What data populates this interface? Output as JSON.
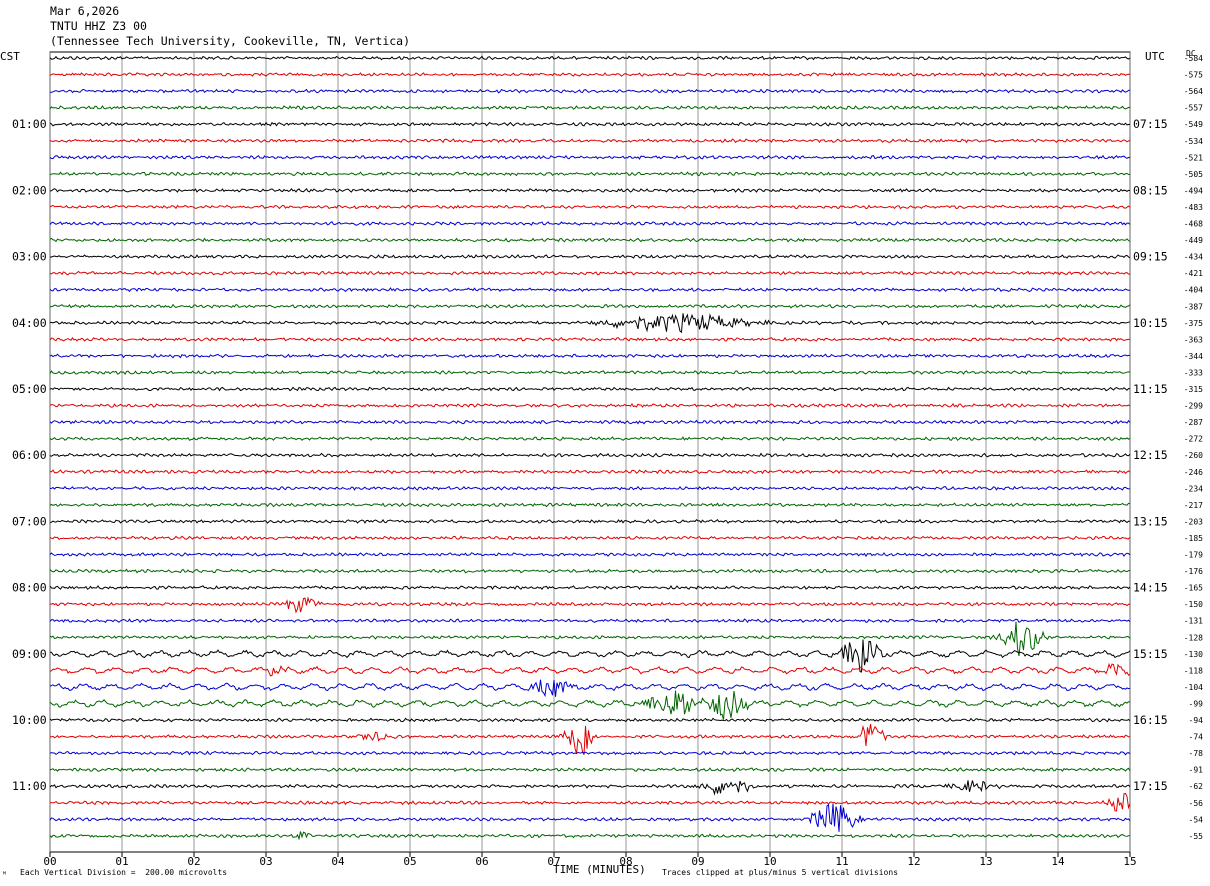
{
  "header": {
    "line1": "Mar 6,2026",
    "line2": "TNTU HHZ Z3 00",
    "line3": "(Tennessee Tech University, Cookeville, TN, Vertica)"
  },
  "left_tz": "CST",
  "right_tz": "UTC",
  "dc_label": "DC",
  "footer": {
    "scale": "Each Vertical Division =  200.00 microvolts",
    "xlabel": "TIME (MINUTES)",
    "clip_note": "Traces clipped at plus/minus 5 vertical divisions"
  },
  "chart_data": {
    "type": "line",
    "title": "TNTU HHZ Z3 00",
    "xlabel": "TIME (MINUTES)",
    "xlim": [
      0,
      15
    ],
    "x_ticks": [
      "00",
      "01",
      "02",
      "03",
      "04",
      "05",
      "06",
      "07",
      "08",
      "09",
      "10",
      "11",
      "12",
      "13",
      "14",
      "15"
    ],
    "trace_colors": [
      "#000000",
      "#e00000",
      "#0000d0",
      "#006400"
    ],
    "left_time_labels": [
      "01:00",
      "02:00",
      "03:00",
      "04:00",
      "05:00",
      "06:00",
      "07:00",
      "08:00",
      "09:00",
      "10:00",
      "11:00"
    ],
    "right_time_labels": [
      "07:15",
      "08:15",
      "09:15",
      "10:15",
      "11:15",
      "12:15",
      "13:15",
      "14:15",
      "15:15",
      "16:15",
      "17:15"
    ],
    "label_rows": [
      4,
      8,
      12,
      16,
      20,
      24,
      28,
      32,
      36,
      40,
      44
    ],
    "dc_offsets": [
      "-584",
      "-575",
      "-564",
      "-557",
      "-549",
      "-534",
      "-521",
      "-505",
      "-494",
      "-483",
      "-468",
      "-449",
      "-434",
      "-421",
      "-404",
      "-387",
      "-375",
      "-363",
      "-344",
      "-333",
      "-315",
      "-299",
      "-287",
      "-272",
      "-260",
      "-246",
      "-234",
      "-217",
      "-203",
      "-185",
      "-179",
      "-176",
      "-165",
      "-150",
      "-131",
      "-128",
      "-130",
      "-118",
      "-104",
      "-99",
      "-94",
      "-74",
      "-78",
      "-91",
      "-62",
      "-56",
      "-54",
      "-55"
    ],
    "events": [
      {
        "trace": 16,
        "minute": 8.7,
        "amplitude": 0.9,
        "duration": 2.5
      },
      {
        "trace": 33,
        "minute": 3.5,
        "amplitude": 0.8,
        "duration": 0.6
      },
      {
        "trace": 35,
        "minute": 13.5,
        "amplitude": 2.0,
        "duration": 0.6
      },
      {
        "trace": 36,
        "minute": 11.25,
        "amplitude": 2.0,
        "duration": 0.6
      },
      {
        "trace": 37,
        "minute": 3.15,
        "amplitude": 0.7,
        "duration": 0.3
      },
      {
        "trace": 37,
        "minute": 14.8,
        "amplitude": 0.7,
        "duration": 0.5
      },
      {
        "trace": 38,
        "minute": 6.95,
        "amplitude": 1.5,
        "duration": 0.6
      },
      {
        "trace": 39,
        "minute": 8.6,
        "amplitude": 1.7,
        "duration": 0.8
      },
      {
        "trace": 39,
        "minute": 9.4,
        "amplitude": 1.7,
        "duration": 0.6
      },
      {
        "trace": 41,
        "minute": 7.35,
        "amplitude": 2.3,
        "duration": 0.5
      },
      {
        "trace": 41,
        "minute": 11.4,
        "amplitude": 1.4,
        "duration": 0.5
      },
      {
        "trace": 41,
        "minute": 4.5,
        "amplitude": 0.6,
        "duration": 0.5
      },
      {
        "trace": 44,
        "minute": 9.4,
        "amplitude": 1.0,
        "duration": 0.8
      },
      {
        "trace": 44,
        "minute": 12.8,
        "amplitude": 0.6,
        "duration": 0.7
      },
      {
        "trace": 45,
        "minute": 14.9,
        "amplitude": 1.0,
        "duration": 0.5
      },
      {
        "trace": 46,
        "minute": 10.9,
        "amplitude": 1.6,
        "duration": 0.8
      },
      {
        "trace": 47,
        "minute": 3.5,
        "amplitude": 0.6,
        "duration": 0.3
      }
    ]
  }
}
